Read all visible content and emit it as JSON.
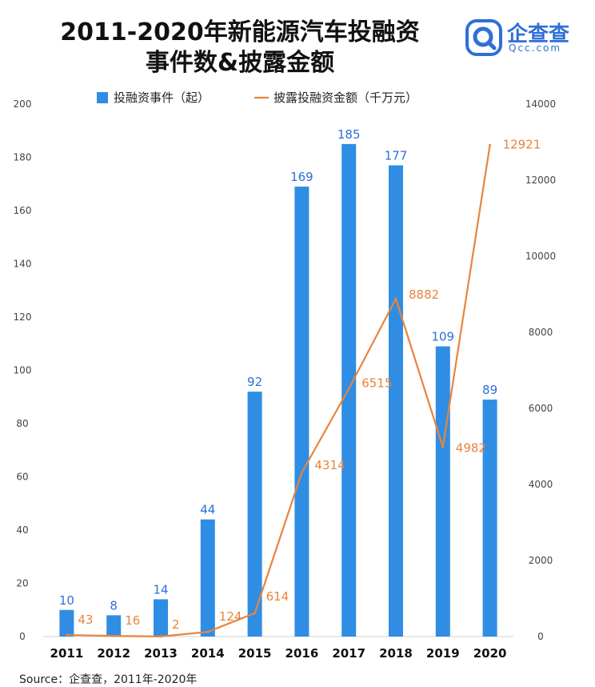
{
  "title_line1": "2011-2020年新能源汽车投融资",
  "title_line2": "事件数&披露金额",
  "logo": {
    "name": "企查查",
    "domain": "Qcc.com",
    "icon": "qcc-logo-icon",
    "color": "#2f6fd6"
  },
  "source": "Source：企查查，2011年-2020年",
  "colors": {
    "bar": "#2f8de4",
    "line": "#e8843c",
    "bar_label": "#2f6fd6",
    "line_label": "#e8843c"
  },
  "chart_data": {
    "type": "bar+line",
    "categories": [
      "2011",
      "2012",
      "2013",
      "2014",
      "2015",
      "2016",
      "2017",
      "2018",
      "2019",
      "2020"
    ],
    "series": [
      {
        "name": "投融资事件（起）",
        "type": "bar",
        "axis": "left",
        "values": [
          10,
          8,
          14,
          44,
          92,
          169,
          185,
          177,
          109,
          89
        ]
      },
      {
        "name": "披露投融资金额（千万元）",
        "type": "line",
        "axis": "right",
        "values": [
          43,
          16,
          2,
          124,
          614,
          4314,
          6515,
          8882,
          4982,
          12921
        ]
      }
    ],
    "y_left": {
      "min": 0,
      "max": 200,
      "ticks": [
        0,
        20,
        40,
        60,
        80,
        100,
        120,
        140,
        160,
        180,
        200
      ]
    },
    "y_right": {
      "min": 0,
      "max": 14000,
      "ticks": [
        0,
        2000,
        4000,
        6000,
        8000,
        10000,
        12000,
        14000
      ]
    },
    "legend_position": "top",
    "grid": false
  }
}
